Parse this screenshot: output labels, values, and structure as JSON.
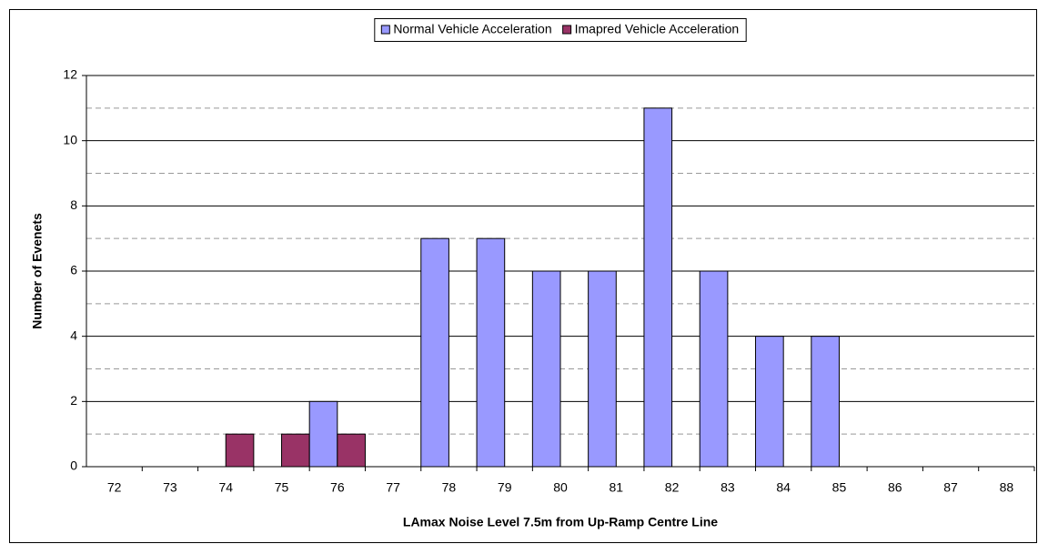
{
  "chart_data": {
    "type": "bar",
    "x_label": "LAmax Noise Level 7.5m from Up-Ramp Centre Line",
    "y_label": "Number of Evenets",
    "categories": [
      "72",
      "73",
      "74",
      "75",
      "76",
      "77",
      "78",
      "79",
      "80",
      "81",
      "82",
      "83",
      "84",
      "85",
      "86",
      "87",
      "88"
    ],
    "series": [
      {
        "name": "Normal Vehicle Acceleration",
        "color": "#9999ff",
        "values": [
          0,
          0,
          0,
          0,
          2,
          0,
          7,
          7,
          6,
          6,
          11,
          6,
          4,
          4,
          0,
          0,
          0
        ]
      },
      {
        "name": "Imapred Vehicle Acceleration",
        "color": "#993366",
        "values": [
          0,
          0,
          1,
          1,
          1,
          0,
          0,
          0,
          0,
          0,
          0,
          0,
          0,
          0,
          0,
          0,
          0
        ]
      }
    ],
    "ylim": [
      0,
      12
    ],
    "yticks": [
      0,
      2,
      4,
      6,
      8,
      10,
      12
    ],
    "minor_yticks": [
      1,
      3,
      5,
      7,
      9,
      11
    ],
    "grid": true,
    "legend": "top"
  }
}
